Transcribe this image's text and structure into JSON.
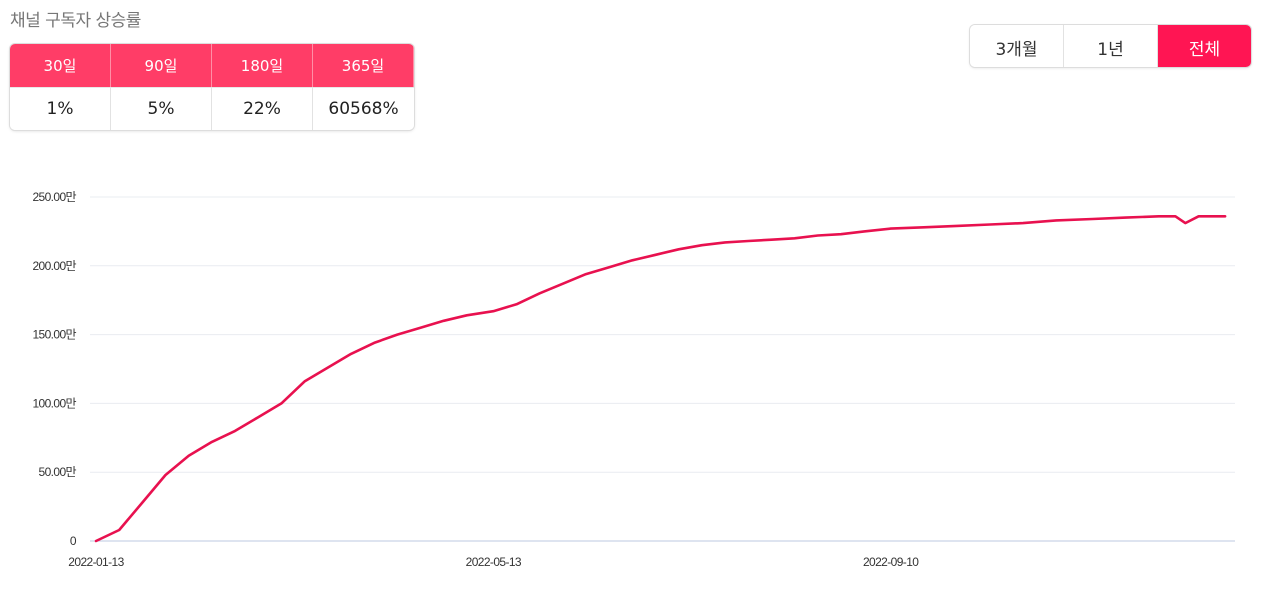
{
  "title": "채널 구독자 상승률",
  "growth_table": {
    "headers": [
      "30일",
      "90일",
      "180일",
      "365일"
    ],
    "values": [
      "1%",
      "5%",
      "22%",
      "60568%"
    ]
  },
  "range_buttons": {
    "items": [
      "3개월",
      "1년",
      "전체"
    ],
    "active": "전체"
  },
  "colors": {
    "accent": "#ff1553",
    "header": "#ff3d67",
    "line": "#e8114f"
  },
  "chart_data": {
    "type": "line",
    "x_ticks": [
      "2022-01-13",
      "2022-05-13",
      "2022-09-10"
    ],
    "y_ticks": [
      "0",
      "50.00만",
      "100.00만",
      "150.00만",
      "200.00만",
      "250.00만"
    ],
    "ylim": [
      0,
      250
    ],
    "y_unit": "만",
    "grid": true,
    "series": [
      {
        "x": [
          "2022-01-13",
          "2022-01-20",
          "2022-01-27",
          "2022-02-03",
          "2022-02-10",
          "2022-02-17",
          "2022-02-24",
          "2022-03-03",
          "2022-03-10",
          "2022-03-17",
          "2022-03-24",
          "2022-03-31",
          "2022-04-07",
          "2022-04-14",
          "2022-04-21",
          "2022-04-28",
          "2022-05-05",
          "2022-05-13",
          "2022-05-20",
          "2022-05-27",
          "2022-06-03",
          "2022-06-10",
          "2022-06-17",
          "2022-06-24",
          "2022-07-01",
          "2022-07-08",
          "2022-07-15",
          "2022-07-22",
          "2022-07-29",
          "2022-08-05",
          "2022-08-12",
          "2022-08-19",
          "2022-08-26",
          "2022-09-02",
          "2022-09-10",
          "2022-09-20",
          "2022-09-30",
          "2022-10-10",
          "2022-10-20",
          "2022-10-30",
          "2022-11-10",
          "2022-11-20",
          "2022-11-30",
          "2022-12-05",
          "2022-12-08",
          "2022-12-12",
          "2022-12-20"
        ],
        "y": [
          0,
          8,
          28,
          48,
          62,
          72,
          80,
          90,
          100,
          116,
          126,
          136,
          144,
          150,
          155,
          160,
          164,
          167,
          172,
          180,
          187,
          194,
          199,
          204,
          208,
          212,
          215,
          217,
          218,
          219,
          220,
          222,
          223,
          225,
          227,
          228,
          229,
          230,
          231,
          233,
          234,
          235,
          236,
          236,
          231,
          236,
          236
        ]
      }
    ]
  }
}
